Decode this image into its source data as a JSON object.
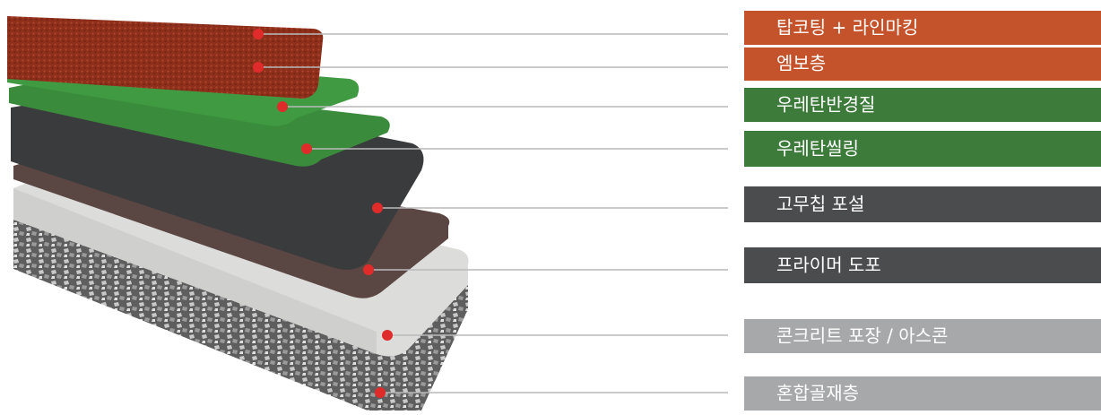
{
  "layers": [
    {
      "label": "탑코팅 + 라인마킹"
    },
    {
      "label": "엠보층"
    },
    {
      "label": "우레탄반경질"
    },
    {
      "label": "우레탄씰링"
    },
    {
      "label": "고무칩 포설"
    },
    {
      "label": "프라이머 도포"
    },
    {
      "label": "콘크리트 포장 / 아스콘"
    },
    {
      "label": "혼합골재층"
    }
  ]
}
